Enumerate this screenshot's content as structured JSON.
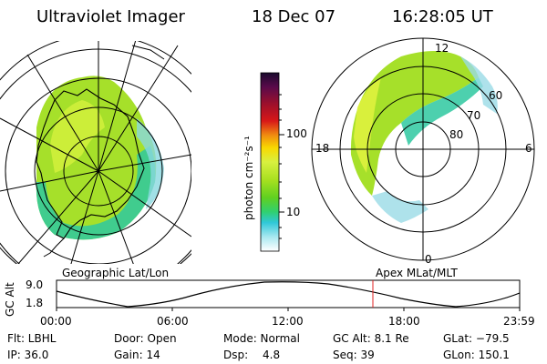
{
  "header": {
    "instrument": "Ultraviolet Imager",
    "date": "18 Dec 07",
    "time": "16:28:05 UT"
  },
  "colorbar": {
    "label": "photon cm⁻²s⁻¹",
    "ticks": [
      "100",
      "10"
    ],
    "scale": "log",
    "colors": [
      "#1a0a2e",
      "#5a0a4a",
      "#a0102a",
      "#d81818",
      "#f08c10",
      "#f8d800",
      "#d8f040",
      "#a8e020",
      "#60d020",
      "#30d070",
      "#30c8d8",
      "#a8e8f0",
      "#ffffff"
    ]
  },
  "left_map": {
    "caption": "Geographic Lat/Lon",
    "projection": "geographic",
    "fill_color": "#8ee028",
    "edge_color": "#2ec8a0"
  },
  "right_map": {
    "caption": "Apex MLat/MLT",
    "projection": "magnetic",
    "mlt_labels": {
      "top": "12",
      "left": "18",
      "right": "6",
      "bottom": "0"
    },
    "mlat_labels": [
      "60",
      "70",
      "80"
    ],
    "fill_color": "#8ee028",
    "edge_color": "#2ec8a0"
  },
  "altitude_plot": {
    "ylabel": "GC Alt",
    "ytick_top": "9.0",
    "ytick_bottom": "1.8",
    "xticks": [
      "00:00",
      "06:00",
      "12:00",
      "18:00",
      "23:59"
    ],
    "marker_color": "#e02020"
  },
  "info": {
    "flt": "Flt: LBHL",
    "door": "Door: Open",
    "mode": "Mode: Normal",
    "gc_alt": "GC Alt: 8.1 Re",
    "glat": "GLat: −79.5",
    "ip": "IP: 36.0",
    "gain": "Gain: 14",
    "dsp_label": "Dsp:",
    "dsp_value": "4.8",
    "seq": "Seq: 39",
    "glon": "GLon: 150.1"
  }
}
